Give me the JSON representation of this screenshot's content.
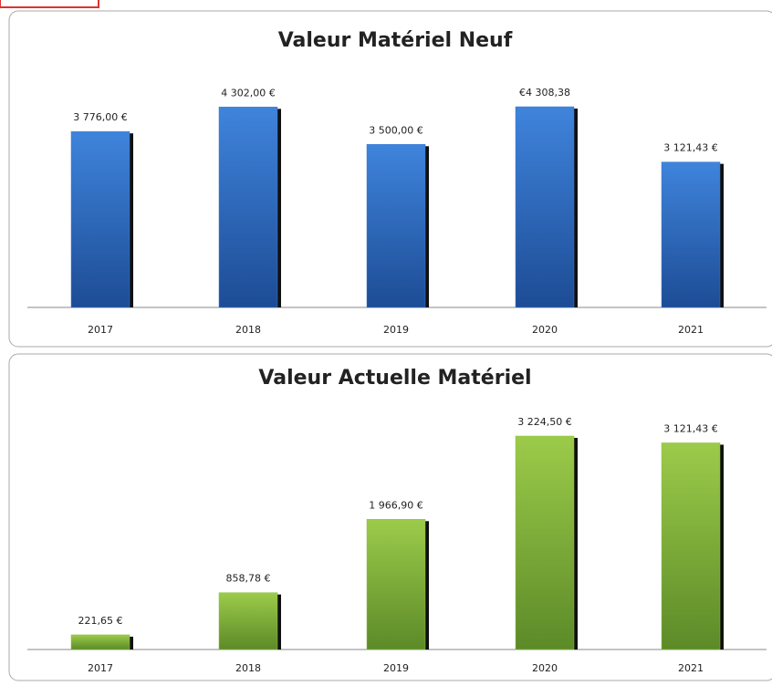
{
  "chart_data": [
    {
      "type": "bar",
      "title": "Valeur Matériel Neuf",
      "categories": [
        "2017",
        "2018",
        "2019",
        "2020",
        "2021"
      ],
      "values": [
        3776,
        4302,
        3500,
        4308.38,
        3121.43
      ],
      "value_labels": [
        "3 776,00 €",
        "4 302,00 €",
        "3 500,00 €",
        "€4 308,38",
        "3 121,43 €"
      ],
      "color": "#3a7bd5"
    },
    {
      "type": "bar",
      "title": "Valeur Actuelle Matériel",
      "categories": [
        "2017",
        "2018",
        "2019",
        "2020",
        "2021"
      ],
      "values": [
        221.65,
        858.78,
        1966.9,
        3224.5,
        3121.43
      ],
      "value_labels": [
        "221,65 €",
        "858,78 €",
        "1 966,90 €",
        "3 224,50 €",
        "3 121,43 €"
      ],
      "color": "#8fc043"
    }
  ]
}
